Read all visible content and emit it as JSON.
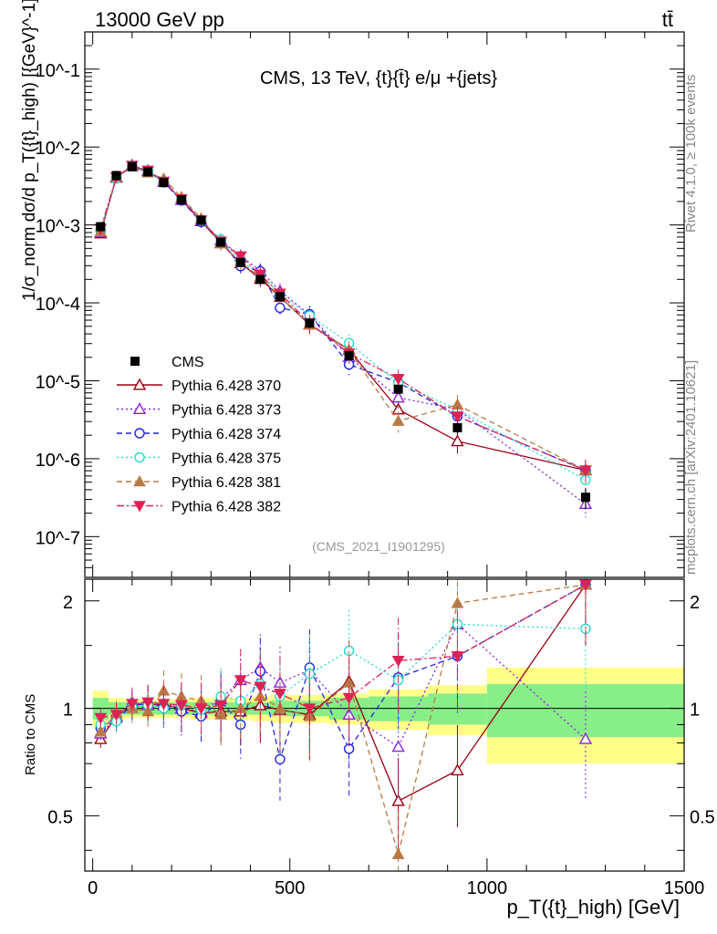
{
  "header": {
    "left": "13000 GeV pp",
    "right": "tt̄"
  },
  "side": {
    "rivet": "Rivet 4.1.0, ≥ 100k events",
    "site": "mcplots.cern.ch [arXiv:2401.10621]"
  },
  "chart_data": {
    "type": "line",
    "title": "CMS, 13 TeV, {t}{t̄} e/μ +{jets}",
    "analysis_tag": "(CMS_2021_I1901295)",
    "xlabel": "p_T({t}_high) [GeV]",
    "ylabel": "1/σ_norm dσ/d p_T({t}_high) [{GeV}^-1]",
    "ratio_ylabel": "Ratio to CMS",
    "xlim": [
      -20,
      1500
    ],
    "ylim": [
      3e-08,
      0.3
    ],
    "ratio_ylim": [
      0.35,
      2.3
    ],
    "x_ticks": [
      0,
      500,
      1000,
      1500
    ],
    "y_ticks": [
      "10^-7",
      "10^-6",
      "10^-5",
      "10^-4",
      "10^-3",
      "10^-2",
      "10^-1"
    ],
    "ratio_ticks": [
      "0.5",
      "1",
      "2"
    ],
    "bin_edges": [
      0,
      40,
      80,
      120,
      160,
      200,
      250,
      300,
      350,
      400,
      450,
      500,
      600,
      700,
      850,
      1000,
      1500
    ],
    "x": [
      20,
      60,
      100,
      140,
      180,
      225,
      275,
      325,
      375,
      425,
      475,
      550,
      650,
      775,
      925,
      1250
    ],
    "data": {
      "name": "CMS",
      "values": [
        0.00095,
        0.0043,
        0.0056,
        0.0048,
        0.0035,
        0.0021,
        0.00115,
        0.0006,
        0.00033,
        0.0002,
        0.00012,
        5.5e-05,
        2.1e-05,
        7.8e-06,
        2.5e-06,
        3.2e-07
      ],
      "rel_uncertainty_inner": [
        0.07,
        0.04,
        0.04,
        0.04,
        0.04,
        0.04,
        0.04,
        0.04,
        0.04,
        0.04,
        0.05,
        0.05,
        0.07,
        0.08,
        0.1,
        0.17
      ],
      "rel_uncertainty_outer": [
        0.12,
        0.07,
        0.06,
        0.06,
        0.06,
        0.06,
        0.07,
        0.07,
        0.07,
        0.08,
        0.09,
        0.09,
        0.1,
        0.13,
        0.16,
        0.3
      ]
    },
    "series": [
      {
        "name": "Pythia 6.428 370",
        "color": "#990011",
        "marker": "triangle-open",
        "dash": "solid",
        "ratio": [
          0.82,
          0.95,
          1.02,
          1.03,
          1.02,
          1.0,
          0.97,
          0.98,
          0.98,
          1.02,
          0.99,
          0.96,
          1.19,
          0.55,
          0.67,
          2.22
        ]
      },
      {
        "name": "Pythia 6.428 373",
        "color": "#8822dd",
        "marker": "triangle-open",
        "dash": "dot",
        "ratio": [
          0.85,
          0.94,
          1.04,
          1.02,
          1.03,
          1.0,
          0.98,
          1.06,
          1.2,
          1.3,
          1.18,
          1.28,
          0.96,
          0.78,
          1.72,
          0.82
        ]
      },
      {
        "name": "Pythia 6.428 374",
        "color": "#2222dd",
        "marker": "circle-open",
        "dash": "dash",
        "ratio": [
          0.88,
          0.93,
          1.02,
          1.03,
          1.01,
          0.98,
          0.95,
          1.05,
          0.9,
          1.27,
          0.72,
          1.3,
          0.77,
          1.22,
          1.4,
          2.22
        ]
      },
      {
        "name": "Pythia 6.428 375",
        "color": "#22ddcc",
        "marker": "circle-open",
        "dash": "dot",
        "ratio": [
          0.9,
          0.92,
          1.01,
          1.02,
          1.0,
          1.02,
          0.99,
          1.08,
          1.05,
          1.17,
          1.08,
          1.25,
          1.45,
          1.2,
          1.72,
          1.67
        ]
      },
      {
        "name": "Pythia 6.428 381",
        "color": "#b87a44",
        "marker": "triangle-filled",
        "dash": "dash",
        "ratio": [
          0.86,
          0.97,
          1.0,
          0.98,
          1.12,
          1.08,
          1.05,
          0.96,
          1.0,
          1.08,
          1.0,
          0.95,
          1.18,
          0.39,
          1.97,
          2.22
        ]
      },
      {
        "name": "Pythia 6.428 382",
        "color": "#dd2255",
        "marker": "triangle-down-filled",
        "dash": "dashdot",
        "ratio": [
          0.94,
          0.96,
          1.03,
          1.04,
          1.03,
          1.02,
          1.0,
          1.02,
          1.2,
          1.15,
          1.1,
          1.0,
          1.07,
          1.36,
          1.4,
          2.22
        ]
      }
    ]
  }
}
